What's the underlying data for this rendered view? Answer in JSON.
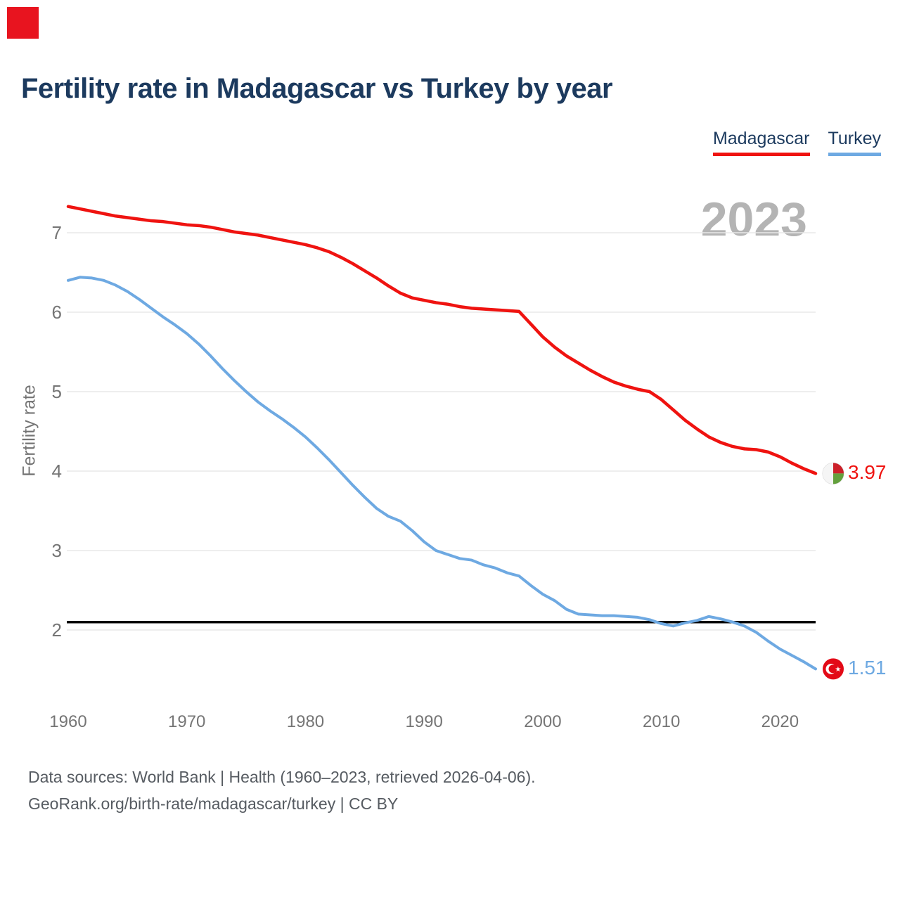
{
  "logo": {
    "color": "#e8141f"
  },
  "header": {
    "title": "Fertility rate in Madagascar vs Turkey by year"
  },
  "legend": {
    "items": [
      {
        "label": "Madagascar",
        "color": "#ef1310"
      },
      {
        "label": "Turkey",
        "color": "#6ea9e2"
      }
    ]
  },
  "watermark": "2023",
  "colors": {
    "madagascar": "#ef1310",
    "turkey": "#6ea9e2",
    "navy": "#1c3a5e",
    "grid": "#e8e8e8",
    "axis_text": "#757575",
    "watermark": "#b4b4b4",
    "footer_text": "#565b61",
    "reference_line": "#000000",
    "madagascar_flag": {
      "white": "#f5f5f5",
      "border": "#d9d9d9",
      "red": "#cc2029",
      "green": "#63a03c"
    },
    "turkey_flag": {
      "red": "#e30a17",
      "white": "#ffffff"
    }
  },
  "chart_data": {
    "type": "line",
    "title": "Fertility rate in Madagascar vs Turkey by year",
    "xlabel": "",
    "ylabel": "Fertility rate",
    "xlim": [
      1960,
      2023
    ],
    "ylim": [
      1.35,
      7.6
    ],
    "grid": true,
    "legend_position": "top-right",
    "yticks": [
      2,
      3,
      4,
      5,
      6,
      7
    ],
    "xticks": [
      1960,
      1970,
      1980,
      1990,
      2000,
      2010,
      2020
    ],
    "reference_line": {
      "value": 2.1,
      "label": ""
    },
    "x": [
      1960,
      1961,
      1962,
      1963,
      1964,
      1965,
      1966,
      1967,
      1968,
      1969,
      1970,
      1971,
      1972,
      1973,
      1974,
      1975,
      1976,
      1977,
      1978,
      1979,
      1980,
      1981,
      1982,
      1983,
      1984,
      1985,
      1986,
      1987,
      1988,
      1989,
      1990,
      1991,
      1992,
      1993,
      1994,
      1995,
      1996,
      1997,
      1998,
      1999,
      2000,
      2001,
      2002,
      2003,
      2004,
      2005,
      2006,
      2007,
      2008,
      2009,
      2010,
      2011,
      2012,
      2013,
      2014,
      2015,
      2016,
      2017,
      2018,
      2019,
      2020,
      2021,
      2022,
      2023
    ],
    "series": [
      {
        "name": "Madagascar",
        "end_label": "3.97",
        "end_value": 3.97,
        "values": [
          7.33,
          7.3,
          7.27,
          7.24,
          7.21,
          7.19,
          7.17,
          7.15,
          7.14,
          7.12,
          7.1,
          7.09,
          7.07,
          7.04,
          7.01,
          6.99,
          6.97,
          6.94,
          6.91,
          6.88,
          6.85,
          6.81,
          6.76,
          6.69,
          6.61,
          6.52,
          6.43,
          6.33,
          6.24,
          6.18,
          6.15,
          6.12,
          6.1,
          6.07,
          6.05,
          6.04,
          6.03,
          6.02,
          6.01,
          5.85,
          5.69,
          5.56,
          5.45,
          5.36,
          5.27,
          5.19,
          5.12,
          5.07,
          5.03,
          5.0,
          4.9,
          4.77,
          4.64,
          4.53,
          4.43,
          4.36,
          4.31,
          4.28,
          4.27,
          4.24,
          4.18,
          4.1,
          4.03,
          3.97
        ]
      },
      {
        "name": "Turkey",
        "end_label": "1.51",
        "end_value": 1.51,
        "values": [
          6.4,
          6.44,
          6.43,
          6.4,
          6.34,
          6.26,
          6.16,
          6.05,
          5.94,
          5.84,
          5.73,
          5.6,
          5.45,
          5.29,
          5.14,
          5.0,
          4.87,
          4.76,
          4.66,
          4.55,
          4.43,
          4.29,
          4.14,
          3.98,
          3.82,
          3.67,
          3.53,
          3.43,
          3.37,
          3.25,
          3.11,
          3.0,
          2.95,
          2.9,
          2.88,
          2.82,
          2.78,
          2.72,
          2.68,
          2.56,
          2.45,
          2.37,
          2.26,
          2.2,
          2.19,
          2.18,
          2.18,
          2.17,
          2.16,
          2.13,
          2.08,
          2.05,
          2.09,
          2.12,
          2.17,
          2.14,
          2.1,
          2.05,
          1.97,
          1.86,
          1.76,
          1.68,
          1.6,
          1.51
        ]
      }
    ]
  },
  "footer": {
    "line1": "Data sources: World Bank | Health (1960–2023, retrieved 2026-04-06).",
    "line2": "GeoRank.org/birth-rate/madagascar/turkey | CC BY"
  }
}
